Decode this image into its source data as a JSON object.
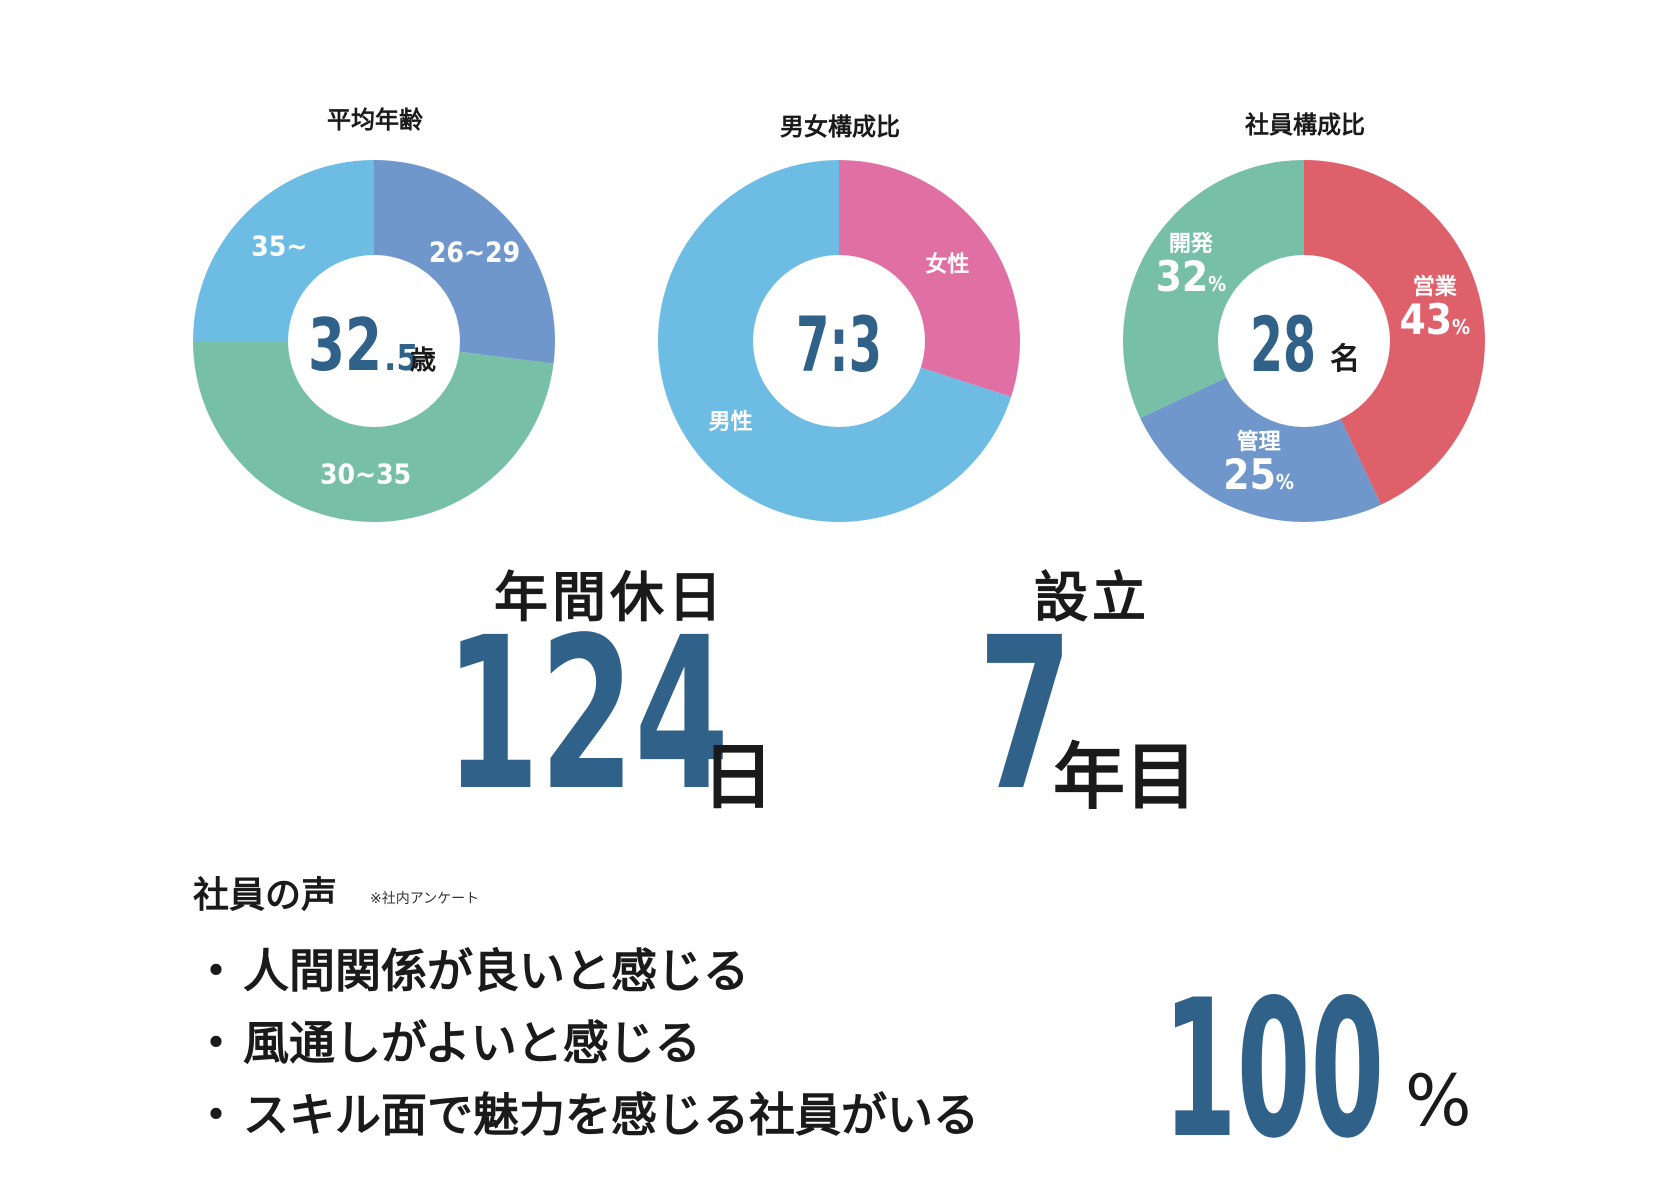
{
  "chart_data": [
    {
      "type": "pie",
      "title": "平均年齢",
      "center_value": "32",
      "center_decimal": ".5",
      "center_unit": "歳",
      "categories": [
        "26~29",
        "30~35",
        "35~"
      ],
      "values": [
        27,
        48,
        25
      ],
      "colors": [
        "#6f97cb",
        "#78bfa8",
        "#6cbce3"
      ]
    },
    {
      "type": "pie",
      "title": "男女構成比",
      "center_value": "7:3",
      "categories": [
        "女性",
        "男性"
      ],
      "values": [
        30,
        70
      ],
      "colors": [
        "#e070a3",
        "#6cbce3"
      ]
    },
    {
      "type": "pie",
      "title": "社員構成比",
      "center_value": "28",
      "center_unit": "名",
      "categories": [
        "営業",
        "管理",
        "開発"
      ],
      "values": [
        43,
        25,
        32
      ],
      "value_labels": [
        "43",
        "25",
        "32"
      ],
      "value_unit": "%",
      "colors": [
        "#de606b",
        "#6f97cb",
        "#78bfa8"
      ]
    }
  ],
  "stats": {
    "holidays": {
      "heading": "年間休日",
      "value": "124",
      "unit": "日"
    },
    "founded": {
      "heading": "設立",
      "value": "7",
      "unit": "年目"
    }
  },
  "voices": {
    "title": "社員の声",
    "note": "※社内アンケート",
    "bullet": "・",
    "items": [
      "人間関係が良いと感じる",
      "風通しがよいと感じる",
      "スキル面で魅力を感じる社員がいる"
    ],
    "percent_value": "100",
    "percent_unit": "%"
  }
}
